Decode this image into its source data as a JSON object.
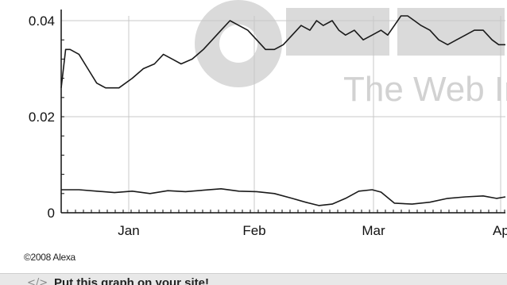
{
  "chart_data": {
    "type": "line",
    "x_ticks": [
      "Jan",
      "Feb",
      "Mar",
      "Ap"
    ],
    "y_ticks": [
      "0.04",
      "0.02",
      "0"
    ],
    "ylim": [
      0,
      0.041
    ],
    "grid": true,
    "series": [
      {
        "points": [
          [
            0.0,
            0.026
          ],
          [
            0.01,
            0.034
          ],
          [
            0.02,
            0.034
          ],
          [
            0.04,
            0.033
          ],
          [
            0.06,
            0.03
          ],
          [
            0.08,
            0.027
          ],
          [
            0.1,
            0.026
          ],
          [
            0.13,
            0.026
          ],
          [
            0.16,
            0.028
          ],
          [
            0.185,
            0.03
          ],
          [
            0.21,
            0.031
          ],
          [
            0.23,
            0.033
          ],
          [
            0.25,
            0.032
          ],
          [
            0.27,
            0.031
          ],
          [
            0.295,
            0.032
          ],
          [
            0.32,
            0.034
          ],
          [
            0.34,
            0.036
          ],
          [
            0.36,
            0.038
          ],
          [
            0.38,
            0.04
          ],
          [
            0.4,
            0.039
          ],
          [
            0.42,
            0.038
          ],
          [
            0.44,
            0.036
          ],
          [
            0.46,
            0.034
          ],
          [
            0.48,
            0.034
          ],
          [
            0.5,
            0.035
          ],
          [
            0.52,
            0.037
          ],
          [
            0.54,
            0.039
          ],
          [
            0.56,
            0.038
          ],
          [
            0.575,
            0.04
          ],
          [
            0.59,
            0.039
          ],
          [
            0.61,
            0.04
          ],
          [
            0.625,
            0.038
          ],
          [
            0.64,
            0.037
          ],
          [
            0.66,
            0.038
          ],
          [
            0.68,
            0.036
          ],
          [
            0.7,
            0.037
          ],
          [
            0.72,
            0.038
          ],
          [
            0.735,
            0.037
          ],
          [
            0.75,
            0.039
          ],
          [
            0.765,
            0.041
          ],
          [
            0.78,
            0.041
          ],
          [
            0.795,
            0.04
          ],
          [
            0.81,
            0.039
          ],
          [
            0.83,
            0.038
          ],
          [
            0.85,
            0.036
          ],
          [
            0.87,
            0.035
          ],
          [
            0.89,
            0.036
          ],
          [
            0.91,
            0.037
          ],
          [
            0.93,
            0.038
          ],
          [
            0.95,
            0.038
          ],
          [
            0.97,
            0.036
          ],
          [
            0.985,
            0.035
          ],
          [
            1.0,
            0.035
          ]
        ]
      },
      {
        "points": [
          [
            0.0,
            0.0048
          ],
          [
            0.04,
            0.0048
          ],
          [
            0.08,
            0.0045
          ],
          [
            0.12,
            0.0042
          ],
          [
            0.16,
            0.0045
          ],
          [
            0.2,
            0.004
          ],
          [
            0.24,
            0.0046
          ],
          [
            0.28,
            0.0044
          ],
          [
            0.32,
            0.0047
          ],
          [
            0.36,
            0.005
          ],
          [
            0.4,
            0.0045
          ],
          [
            0.44,
            0.0044
          ],
          [
            0.48,
            0.004
          ],
          [
            0.52,
            0.003
          ],
          [
            0.55,
            0.0022
          ],
          [
            0.58,
            0.0015
          ],
          [
            0.61,
            0.0018
          ],
          [
            0.64,
            0.003
          ],
          [
            0.67,
            0.0045
          ],
          [
            0.7,
            0.0048
          ],
          [
            0.72,
            0.0043
          ],
          [
            0.75,
            0.002
          ],
          [
            0.79,
            0.0018
          ],
          [
            0.83,
            0.0022
          ],
          [
            0.87,
            0.003
          ],
          [
            0.91,
            0.0033
          ],
          [
            0.95,
            0.0035
          ],
          [
            0.98,
            0.003
          ],
          [
            1.0,
            0.0033
          ]
        ]
      }
    ]
  },
  "copyright": "©2008 Alexa",
  "watermark": {
    "tagline": "The Web Infor"
  },
  "promo": {
    "link_label": "Put this graph on your site!",
    "icon": "code-icon"
  },
  "colors": {
    "line": "#1a1a1a",
    "grid": "#c8c8c8",
    "watermark": "#d2d2d2",
    "background": "#ffffff"
  }
}
